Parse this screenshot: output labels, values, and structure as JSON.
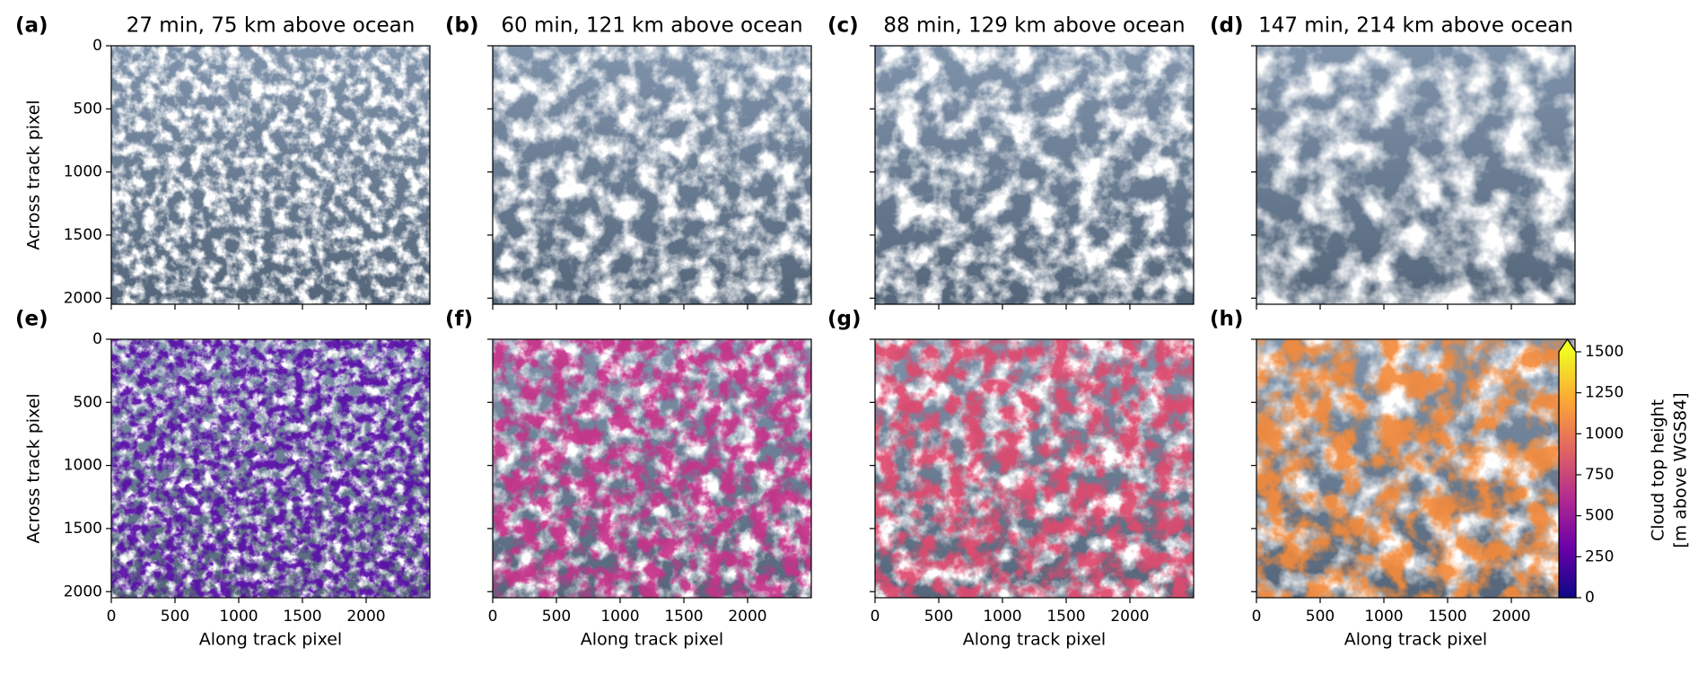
{
  "chart_data": [
    {
      "type": "image",
      "label": "(a)",
      "title": "27 min, 75 km above ocean",
      "y_label": "Across track pixel",
      "xlim": [
        0,
        2500
      ],
      "ylim": [
        2048,
        0
      ],
      "xticks": [
        0,
        500,
        1000,
        1500,
        2000
      ],
      "yticks": [
        0,
        500,
        1000,
        1500,
        2000
      ],
      "xticklabels": false,
      "yticklabels": true
    },
    {
      "type": "image",
      "label": "(b)",
      "title": "60 min, 121 km above ocean",
      "xlim": [
        0,
        2500
      ],
      "ylim": [
        2048,
        0
      ],
      "xticks": [
        0,
        500,
        1000,
        1500,
        2000
      ],
      "yticks": [
        0,
        500,
        1000,
        1500,
        2000
      ],
      "xticklabels": false,
      "yticklabels": false
    },
    {
      "type": "image",
      "label": "(c)",
      "title": "88 min, 129 km above ocean",
      "xlim": [
        0,
        2500
      ],
      "ylim": [
        2048,
        0
      ],
      "xticks": [
        0,
        500,
        1000,
        1500,
        2000
      ],
      "yticks": [
        0,
        500,
        1000,
        1500,
        2000
      ],
      "xticklabels": false,
      "yticklabels": false
    },
    {
      "type": "image",
      "label": "(d)",
      "title": "147 min, 214 km above ocean",
      "xlim": [
        0,
        2500
      ],
      "ylim": [
        2048,
        0
      ],
      "xticks": [
        0,
        500,
        1000,
        1500,
        2000
      ],
      "yticks": [
        0,
        500,
        1000,
        1500,
        2000
      ],
      "xticklabels": false,
      "yticklabels": false
    },
    {
      "type": "image",
      "label": "(e)",
      "x_label": "Along track pixel",
      "y_label": "Across track pixel",
      "xlim": [
        0,
        2500
      ],
      "ylim": [
        2048,
        0
      ],
      "xticks": [
        0,
        500,
        1000,
        1500,
        2000
      ],
      "yticks": [
        0,
        500,
        1000,
        1500,
        2000
      ],
      "xticklabels": true,
      "yticklabels": true,
      "overlay_color": "#5a10a8"
    },
    {
      "type": "image",
      "label": "(f)",
      "x_label": "Along track pixel",
      "xlim": [
        0,
        2500
      ],
      "ylim": [
        2048,
        0
      ],
      "xticks": [
        0,
        500,
        1000,
        1500,
        2000
      ],
      "yticks": [
        0,
        500,
        1000,
        1500,
        2000
      ],
      "xticklabels": true,
      "yticklabels": false,
      "overlay_color": "#c8308a"
    },
    {
      "type": "image",
      "label": "(g)",
      "x_label": "Along track pixel",
      "xlim": [
        0,
        2500
      ],
      "ylim": [
        2048,
        0
      ],
      "xticks": [
        0,
        500,
        1000,
        1500,
        2000
      ],
      "yticks": [
        0,
        500,
        1000,
        1500,
        2000
      ],
      "xticklabels": true,
      "yticklabels": false,
      "overlay_color": "#e0486e"
    },
    {
      "type": "image",
      "label": "(h)",
      "x_label": "Along track pixel",
      "xlim": [
        0,
        2500
      ],
      "ylim": [
        2048,
        0
      ],
      "xticks": [
        0,
        500,
        1000,
        1500,
        2000
      ],
      "yticks": [
        0,
        500,
        1000,
        1500,
        2000
      ],
      "xticklabels": true,
      "yticklabels": false,
      "overlay_color": "#f48a3a"
    },
    {
      "type": "colorbar",
      "label": [
        "Cloud top height",
        "[m above WGS84]"
      ],
      "ylim": [
        0,
        1500
      ],
      "yticks": [
        0,
        250,
        500,
        750,
        1000,
        1250,
        1500
      ],
      "colors": [
        "#0d0887",
        "#6a00a8",
        "#b12a90",
        "#e16462",
        "#fca636",
        "#f0f921"
      ]
    }
  ]
}
